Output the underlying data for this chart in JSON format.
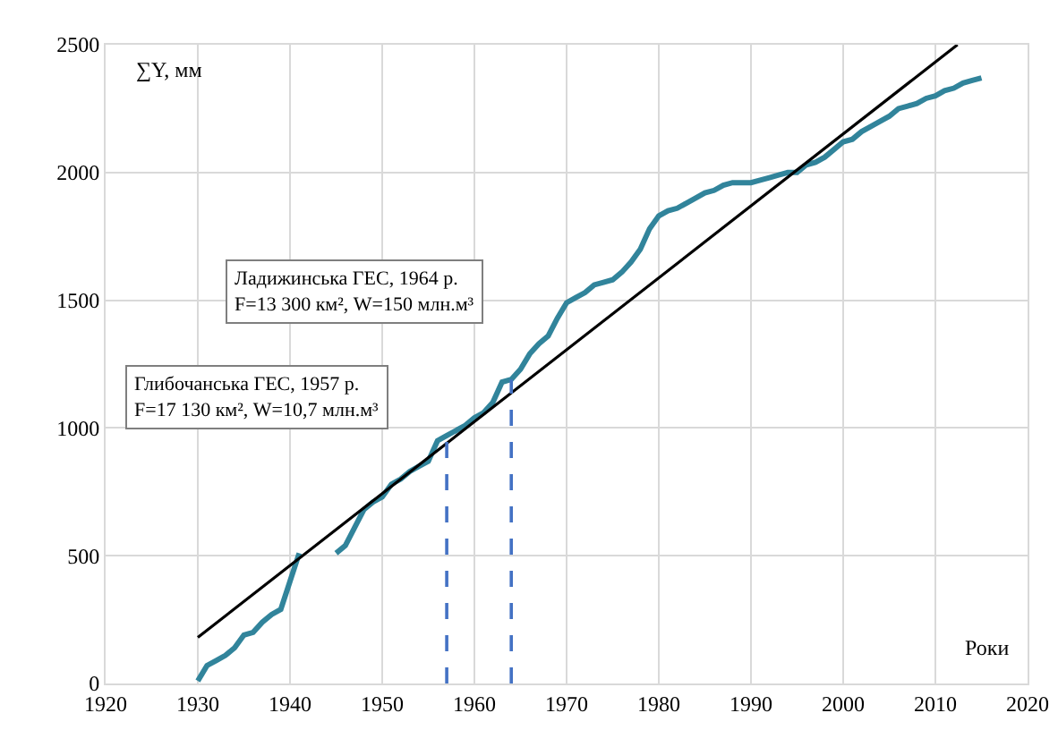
{
  "chart_data": {
    "type": "line",
    "xlabel": "Роки",
    "ylabel": "∑Y, мм",
    "x": [
      1930,
      1931,
      1932,
      1933,
      1934,
      1935,
      1936,
      1937,
      1938,
      1939,
      1940,
      1941,
      1942,
      1943,
      1944,
      1945,
      1946,
      1947,
      1948,
      1949,
      1950,
      1951,
      1952,
      1953,
      1954,
      1955,
      1956,
      1957,
      1958,
      1959,
      1960,
      1961,
      1962,
      1963,
      1964,
      1965,
      1966,
      1967,
      1968,
      1969,
      1970,
      1971,
      1972,
      1973,
      1974,
      1975,
      1976,
      1977,
      1978,
      1979,
      1980,
      1981,
      1982,
      1983,
      1984,
      1985,
      1986,
      1987,
      1988,
      1989,
      1990,
      1991,
      1992,
      1993,
      1994,
      1995,
      1996,
      1997,
      1998,
      1999,
      2000,
      2001,
      2002,
      2003,
      2004,
      2005,
      2006,
      2007,
      2008,
      2009,
      2010,
      2011,
      2012,
      2013,
      2014,
      2015
    ],
    "series": [
      {
        "color": "#31849b",
        "values": [
          10,
          70,
          90,
          110,
          140,
          190,
          200,
          240,
          270,
          290,
          400,
          510,
          null,
          null,
          null,
          510,
          540,
          610,
          680,
          710,
          730,
          780,
          800,
          830,
          850,
          870,
          950,
          970,
          990,
          1010,
          1040,
          1060,
          1100,
          1180,
          1190,
          1230,
          1290,
          1330,
          1360,
          1430,
          1490,
          1510,
          1530,
          1560,
          1570,
          1580,
          1610,
          1650,
          1700,
          1780,
          1830,
          1850,
          1860,
          1880,
          1900,
          1920,
          1930,
          1950,
          1960,
          1960,
          1960,
          1970,
          1980,
          1990,
          2000,
          2000,
          2030,
          2040,
          2060,
          2090,
          2120,
          2130,
          2160,
          2180,
          2200,
          2220,
          2250,
          2260,
          2270,
          2290,
          2300,
          2320,
          2330,
          2350,
          2360,
          2370
        ]
      },
      {
        "type": "line",
        "color": "#000000",
        "x": [
          1930,
          2012.4
        ],
        "values": [
          180,
          2500
        ]
      },
      {
        "type": "line",
        "color": "#4472c4",
        "line_style": "dashed",
        "x": [
          1957,
          1957
        ],
        "values": [
          0,
          950
        ]
      },
      {
        "type": "line",
        "color": "#4472c4",
        "line_style": "dashed",
        "x": [
          1964,
          1964
        ],
        "values": [
          0,
          1190
        ]
      }
    ],
    "annotations": [
      "Ладижинська ГЕС, 1964 р.\nF=13 300 км², W=150 млн.м³",
      "Глибочанська ГЕС, 1957 р.\nF=17 130 км², W=10,7 млн.м³"
    ],
    "xlim": [
      1920,
      2020
    ],
    "xticks": [
      1920,
      1930,
      1940,
      1950,
      1960,
      1970,
      1980,
      1990,
      2000,
      2010,
      2020
    ],
    "ylim": [
      0,
      2500
    ],
    "yticks": [
      0,
      500,
      1000,
      1500,
      2000,
      2500
    ],
    "grid": true,
    "marker": "none",
    "line_style": "solid"
  }
}
